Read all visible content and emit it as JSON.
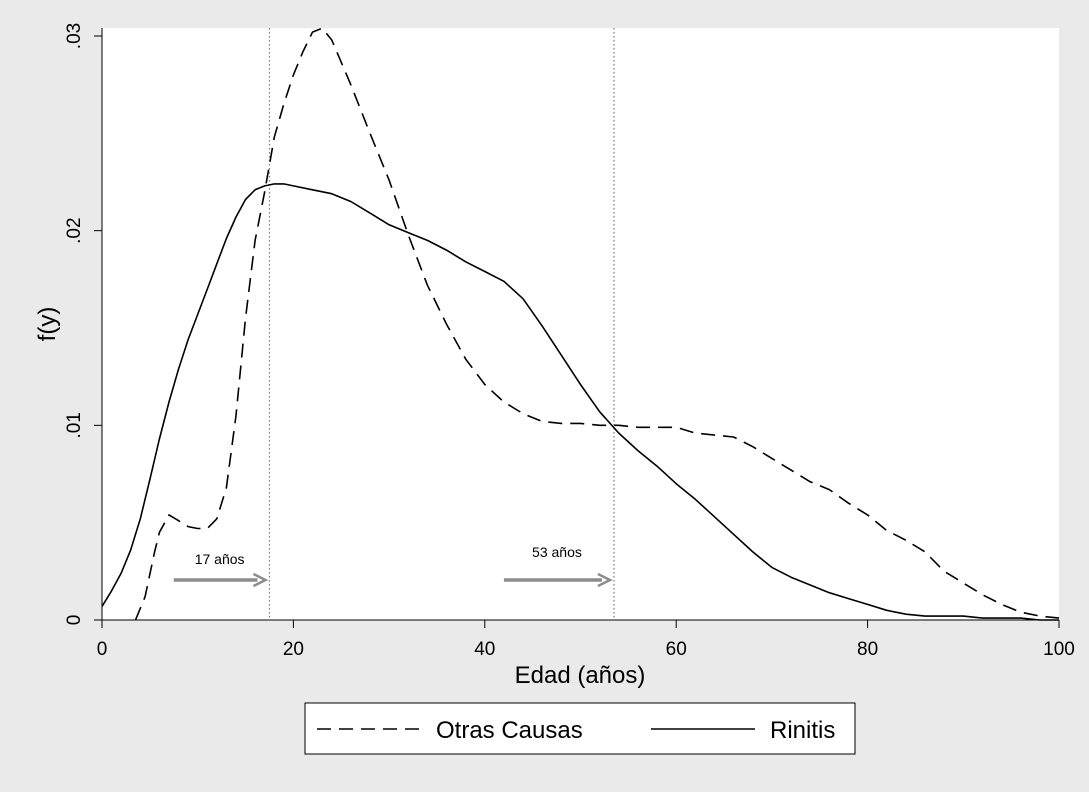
{
  "chart_data": {
    "type": "line",
    "title": "",
    "xlabel": "Edad (años)",
    "ylabel": "f(y)",
    "xlim": [
      0,
      100
    ],
    "ylim": [
      0,
      0.03
    ],
    "x_ticks": [
      {
        "value": 0,
        "label": "0"
      },
      {
        "value": 20,
        "label": "20"
      },
      {
        "value": 40,
        "label": "40"
      },
      {
        "value": 60,
        "label": "60"
      },
      {
        "value": 80,
        "label": "80"
      },
      {
        "value": 100,
        "label": "100"
      }
    ],
    "y_ticks": [
      {
        "value": 0,
        "label": "0"
      },
      {
        "value": 0.01,
        "label": ".01"
      },
      {
        "value": 0.02,
        "label": ".02"
      },
      {
        "value": 0.03,
        "label": ".03"
      }
    ],
    "grid": false,
    "legend_position": "bottom",
    "series": [
      {
        "name": "Otras Causas",
        "style": "dashed",
        "color": "#000000",
        "x": [
          3.5,
          4.5,
          5.5,
          6.0,
          7.0,
          8.0,
          9.0,
          10.0,
          11.0,
          12.0,
          13.0,
          14.0,
          15.0,
          16.0,
          17.0,
          18.0,
          19.0,
          20.0,
          21.0,
          22.0,
          23.0,
          24.0,
          26.0,
          28.0,
          30.0,
          32.0,
          34.0,
          36.0,
          38.0,
          40.0,
          42.0,
          44.0,
          46.0,
          48.0,
          50.0,
          52.0,
          54.0,
          56.0,
          58.0,
          60.0,
          62.0,
          64.0,
          66.0,
          68.0,
          70.0,
          72.0,
          74.0,
          76.0,
          78.0,
          80.0,
          82.0,
          84.0,
          86.0,
          88.0,
          90.0,
          92.0,
          94.0,
          96.0,
          98.0,
          100.0
        ],
        "y": [
          0.0,
          0.0012,
          0.0035,
          0.0045,
          0.0054,
          0.0051,
          0.0048,
          0.0047,
          0.0047,
          0.0052,
          0.0068,
          0.0105,
          0.0155,
          0.0195,
          0.022,
          0.0248,
          0.0265,
          0.028,
          0.0292,
          0.0302,
          0.0304,
          0.0298,
          0.0275,
          0.025,
          0.0226,
          0.0198,
          0.0172,
          0.0152,
          0.0134,
          0.0121,
          0.0112,
          0.0106,
          0.0102,
          0.0101,
          0.0101,
          0.01,
          0.01,
          0.0099,
          0.0099,
          0.0099,
          0.0096,
          0.0095,
          0.0094,
          0.0089,
          0.0083,
          0.0077,
          0.0071,
          0.0067,
          0.006,
          0.0054,
          0.0046,
          0.0041,
          0.0035,
          0.0025,
          0.0019,
          0.0013,
          0.0008,
          0.0004,
          0.0002,
          0.0001
        ]
      },
      {
        "name": "Rinitis",
        "style": "solid",
        "color": "#000000",
        "x": [
          0,
          1,
          2,
          3,
          4,
          5,
          6,
          7,
          8,
          9,
          10,
          11,
          12,
          13,
          14,
          15,
          16,
          17,
          18,
          19,
          20,
          22,
          24,
          26,
          28,
          30,
          32,
          34,
          36,
          38,
          40,
          42,
          44,
          46,
          48,
          50,
          52,
          54,
          56,
          58,
          60,
          62,
          64,
          66,
          68,
          70,
          72,
          74,
          76,
          78,
          80,
          82,
          84,
          86,
          88,
          90,
          92,
          94,
          96,
          98,
          100
        ],
        "y": [
          0.0007,
          0.0015,
          0.0024,
          0.0036,
          0.0052,
          0.0072,
          0.0093,
          0.0112,
          0.0129,
          0.0144,
          0.0157,
          0.017,
          0.0183,
          0.0196,
          0.0207,
          0.0216,
          0.0221,
          0.0223,
          0.0224,
          0.0224,
          0.0223,
          0.0221,
          0.0219,
          0.0215,
          0.0209,
          0.0203,
          0.0199,
          0.0195,
          0.019,
          0.0184,
          0.0179,
          0.0174,
          0.0165,
          0.0151,
          0.0136,
          0.0121,
          0.0107,
          0.0096,
          0.0087,
          0.0079,
          0.007,
          0.0062,
          0.0053,
          0.0044,
          0.0035,
          0.0027,
          0.0022,
          0.0018,
          0.0014,
          0.0011,
          0.0008,
          0.0005,
          0.0003,
          0.0002,
          0.0002,
          0.0002,
          0.0001,
          0.0001,
          0.0001,
          0.0,
          0.0
        ]
      }
    ],
    "annotations": [
      {
        "label": "17 años",
        "at": 17.5,
        "arrow_from": 7.5,
        "line_style": "dotted"
      },
      {
        "label": "53 años",
        "at": 53.5,
        "arrow_from": 42,
        "line_style": "dotted"
      }
    ]
  }
}
